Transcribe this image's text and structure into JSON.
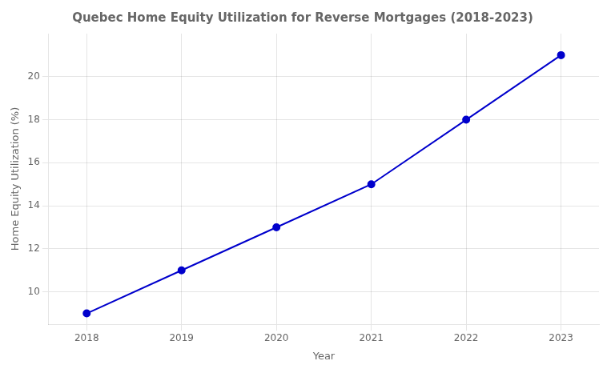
{
  "chart_data": {
    "type": "line",
    "title": "Quebec Home Equity Utilization for Reverse Mortgages (2018-2023)",
    "xlabel": "Year",
    "ylabel": "Home Equity Utilization (%)",
    "x": [
      2018,
      2019,
      2020,
      2021,
      2022,
      2023
    ],
    "values": [
      9,
      11,
      13,
      15,
      18,
      21
    ],
    "color": "#0000CC",
    "marker": "circle",
    "xlim": [
      2017.6,
      2023.4
    ],
    "ylim": [
      8.5,
      22
    ],
    "xticks": [
      2018,
      2019,
      2020,
      2021,
      2022,
      2023
    ],
    "yticks": [
      10,
      12,
      14,
      16,
      18,
      20
    ],
    "grid": true
  }
}
